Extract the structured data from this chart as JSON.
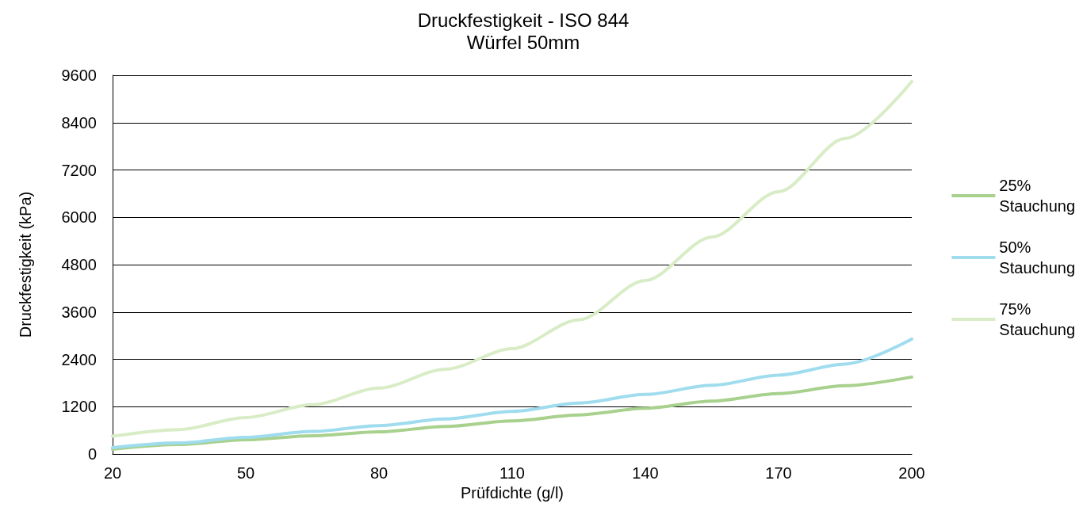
{
  "chart_data": {
    "type": "line",
    "title": "Druckfestigkeit - ISO 844",
    "subtitle": "Würfel 50mm",
    "xlabel": "Prüfdichte (g/l)",
    "ylabel": "Druckfestigkeit (kPa)",
    "x": [
      20,
      35,
      50,
      65,
      80,
      95,
      110,
      125,
      140,
      155,
      170,
      185,
      200
    ],
    "series": [
      {
        "name": "25% Stauchung",
        "color": "#a9d18e",
        "values": [
          120,
          240,
          360,
          460,
          560,
          700,
          840,
          990,
          1160,
          1340,
          1530,
          1730,
          1950
        ]
      },
      {
        "name": "50% Stauchung",
        "color": "#9fdcee",
        "values": [
          160,
          280,
          420,
          570,
          720,
          890,
          1080,
          1290,
          1510,
          1740,
          2000,
          2280,
          2910
        ]
      },
      {
        "name": "75% Stauchung",
        "color": "#d8ecc6",
        "values": [
          450,
          620,
          925,
          1250,
          1670,
          2150,
          2670,
          3400,
          4400,
          5500,
          6650,
          8000,
          9440
        ]
      }
    ],
    "xlim": [
      20,
      200
    ],
    "xticks": [
      20,
      50,
      80,
      110,
      140,
      170,
      200
    ],
    "ylim": [
      0,
      9600
    ],
    "yticks": [
      0,
      1200,
      2400,
      3600,
      4800,
      6000,
      7200,
      8400,
      9600
    ],
    "grid": "y",
    "legend": "right",
    "marker": "none",
    "line_style": "solid"
  }
}
